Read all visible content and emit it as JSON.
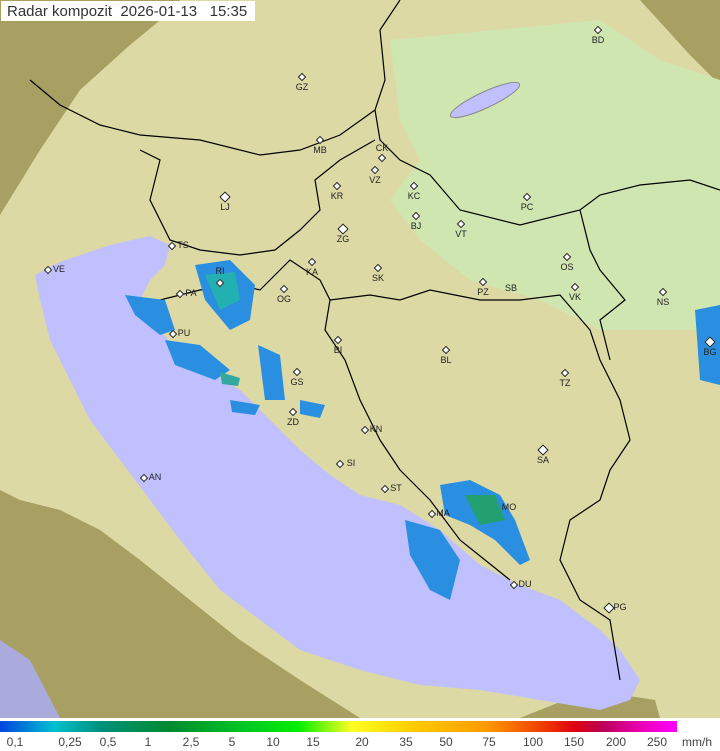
{
  "header": {
    "title": "Radar kompozit",
    "date": "2026-01-13",
    "time": "15:35"
  },
  "map": {
    "colors": {
      "terrain": "#d9d29c",
      "coverage": "#e4e9b6",
      "sea": "#c0c0ff",
      "outside": "#a89f62",
      "border": "#000000"
    },
    "cities": [
      {
        "code": "BD"
      },
      {
        "code": "GZ"
      },
      {
        "code": "MB"
      },
      {
        "code": "CK"
      },
      {
        "code": "VZ"
      },
      {
        "code": "KR"
      },
      {
        "code": "KC"
      },
      {
        "code": "LJ"
      },
      {
        "code": "PC"
      },
      {
        "code": "BJ"
      },
      {
        "code": "VT"
      },
      {
        "code": "ZG"
      },
      {
        "code": "TS"
      },
      {
        "code": "VE"
      },
      {
        "code": "KA"
      },
      {
        "code": "OS"
      },
      {
        "code": "SK"
      },
      {
        "code": "RI"
      },
      {
        "code": "PZ"
      },
      {
        "code": "SB"
      },
      {
        "code": "VK"
      },
      {
        "code": "PA"
      },
      {
        "code": "NS"
      },
      {
        "code": "OG"
      },
      {
        "code": "PU"
      },
      {
        "code": "BG"
      },
      {
        "code": "BI"
      },
      {
        "code": "BL"
      },
      {
        "code": "TZ"
      },
      {
        "code": "GS"
      },
      {
        "code": "ZD"
      },
      {
        "code": "KN"
      },
      {
        "code": "SA"
      },
      {
        "code": "AN"
      },
      {
        "code": "SI"
      },
      {
        "code": "ST"
      },
      {
        "code": "MA"
      },
      {
        "code": "MO"
      },
      {
        "code": "DU"
      },
      {
        "code": "PG"
      }
    ]
  },
  "legend": {
    "unit": "mm/h",
    "ticks": [
      "0,1",
      "0,25",
      "0,5",
      "1",
      "2,5",
      "5",
      "10",
      "15",
      "20",
      "35",
      "50",
      "75",
      "100",
      "150",
      "200",
      "250"
    ]
  }
}
